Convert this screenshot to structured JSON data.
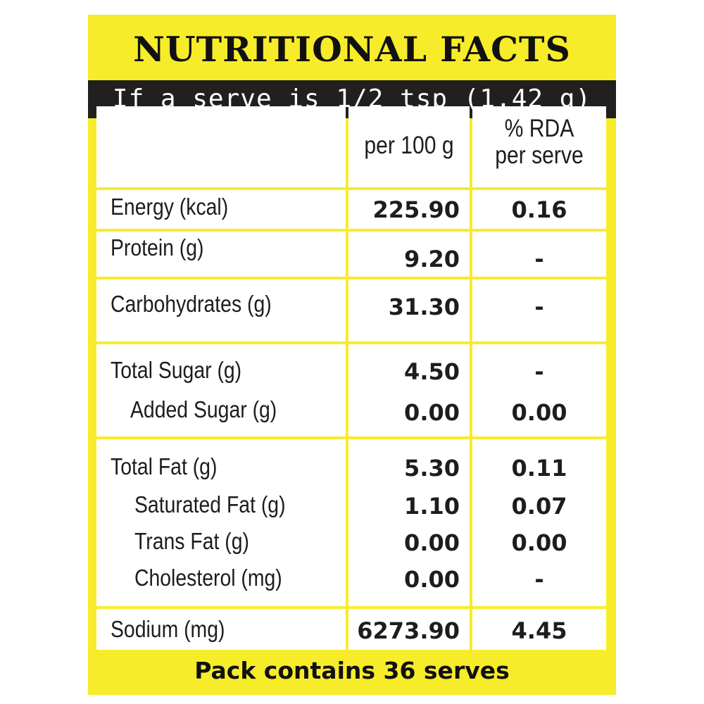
{
  "title": "NUTRITIONAL FACTS",
  "serve_info": "If a serve is 1/2 tsp (1.42 g)",
  "columns": {
    "per100": "per 100 g",
    "rda_line1": "% RDA",
    "rda_line2": "per serve"
  },
  "rows": {
    "energy": {
      "label": "Energy (kcal)",
      "per100": "225.90",
      "rda": "0.16"
    },
    "protein": {
      "label": "Protein (g)",
      "per100": "9.20",
      "rda": "-"
    },
    "carbohydrates": {
      "label": "Carbohydrates (g)",
      "per100": "31.30",
      "rda": "-"
    },
    "total_sugar": {
      "label": "Total Sugar (g)",
      "per100": "4.50",
      "rda": "-"
    },
    "added_sugar": {
      "label": "Added Sugar (g)",
      "per100": "0.00",
      "rda": "0.00"
    },
    "total_fat": {
      "label": "Total Fat (g)",
      "per100": "5.30",
      "rda": "0.11"
    },
    "saturated_fat": {
      "label": "Saturated Fat (g)",
      "per100": "1.10",
      "rda": "0.07"
    },
    "trans_fat": {
      "label": "Trans Fat (g)",
      "per100": "0.00",
      "rda": "0.00"
    },
    "cholesterol": {
      "label": "Cholesterol (mg)",
      "per100": "0.00",
      "rda": "-"
    },
    "sodium": {
      "label": "Sodium (mg)",
      "per100": "6273.90",
      "rda": "4.45"
    }
  },
  "footer": "Pack contains 36 serves",
  "colors": {
    "panel_yellow": "#f7ec2a",
    "serve_bar_dark": "#221f1f",
    "text_dark": "#1d1d1d"
  }
}
